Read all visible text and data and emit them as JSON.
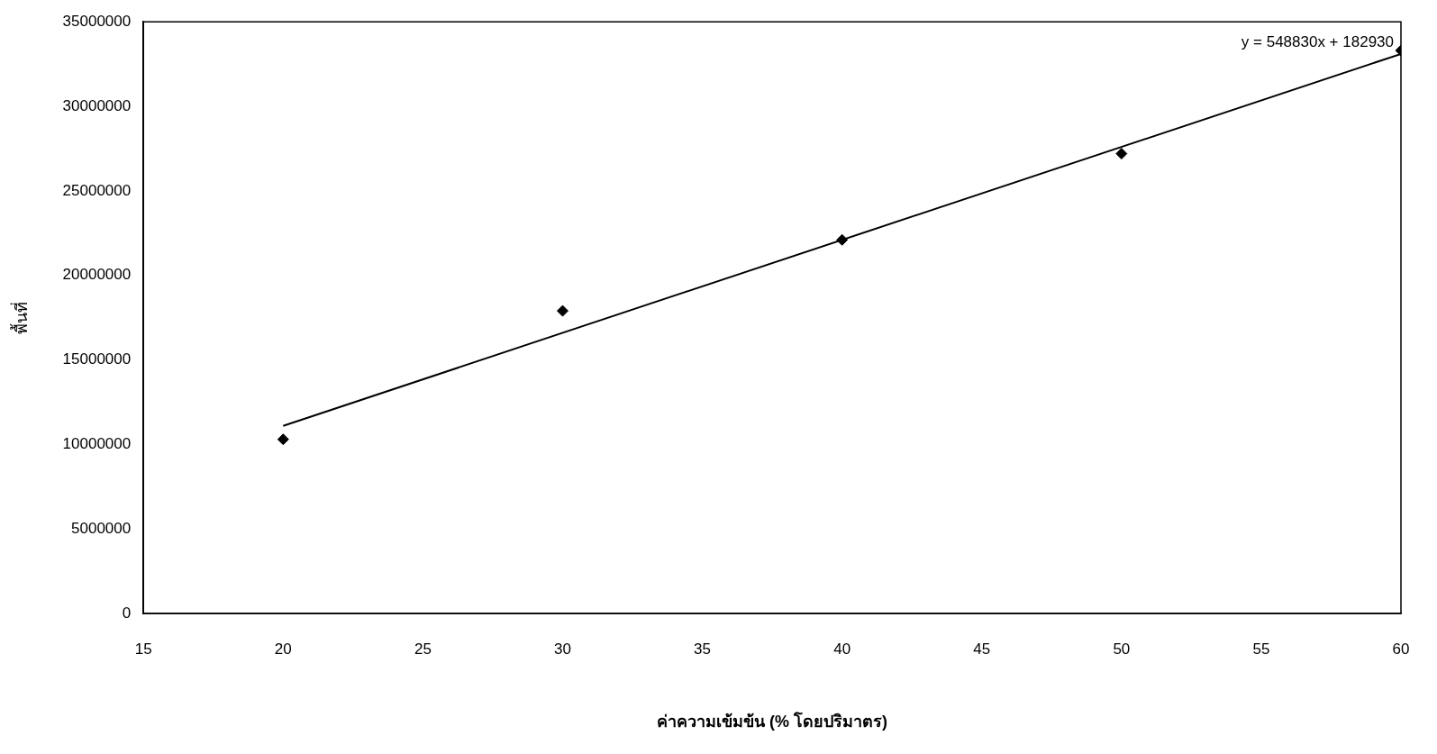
{
  "chart_data": {
    "type": "scatter",
    "xlabel": "ค่าความเข้มข้น (% โดยปริมาตร)",
    "ylabel": "พื้นที่",
    "annotations": [
      {
        "text": "y = 548830x + 182930",
        "x": 60,
        "y": 33100000
      }
    ],
    "series": [
      {
        "marker": "diamond",
        "color": "#000000",
        "x": [
          20,
          30,
          40,
          50,
          60
        ],
        "values": [
          10300000,
          17900000,
          22100000,
          27200000,
          33300000
        ]
      },
      {
        "type": "line",
        "marker": "none",
        "color": "#000000",
        "x": [
          20,
          60
        ],
        "values": [
          11100000,
          33100000
        ]
      }
    ],
    "grid": false,
    "legend": false,
    "xlim": [
      15,
      60
    ],
    "xticks": [
      15,
      20,
      25,
      30,
      35,
      40,
      45,
      50,
      55,
      60
    ],
    "ylim": [
      0,
      35000000
    ],
    "yticks": [
      0,
      5000000,
      10000000,
      15000000,
      20000000,
      25000000,
      30000000,
      35000000
    ]
  }
}
